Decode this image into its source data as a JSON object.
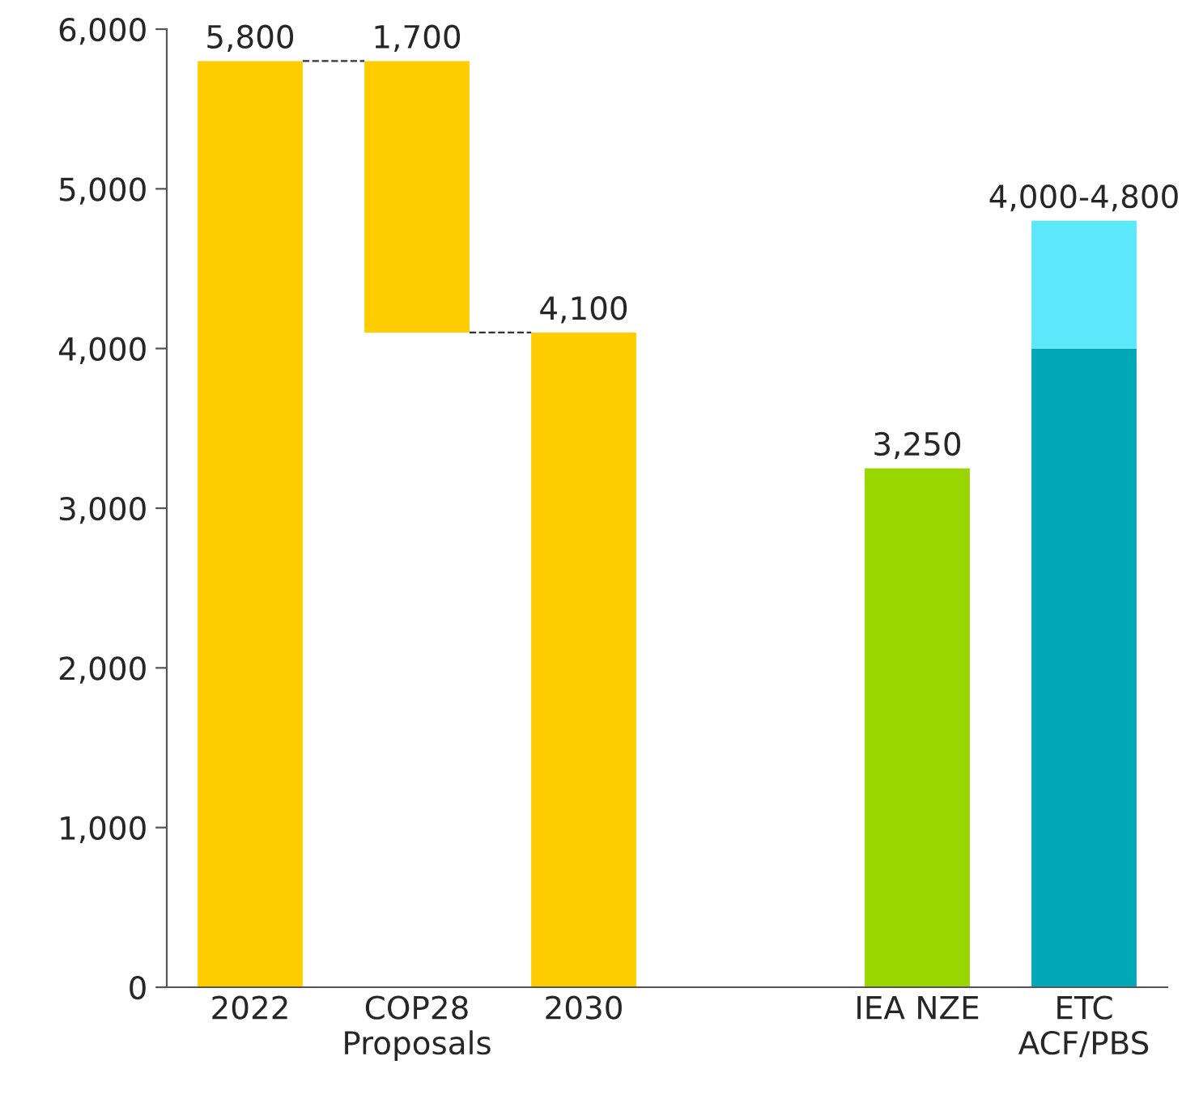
{
  "chart_data": {
    "type": "bar",
    "categories": [
      "2022",
      "COP28\nProposals",
      "2030",
      null,
      "IEA NZE",
      "ETC\nACF/PBS"
    ],
    "stacked": true,
    "series": [
      {
        "base": [
          0,
          4100,
          0,
          null,
          0,
          0
        ],
        "colors": [
          "#ffcc00",
          "#ffcc00",
          "#ffcc00",
          null,
          "#99d600",
          "#00a9b5"
        ],
        "values": [
          5800,
          1700,
          4100,
          null,
          3250,
          4000
        ]
      },
      {
        "color": "#5ce8fb",
        "values": [
          null,
          null,
          null,
          null,
          null,
          800
        ]
      }
    ],
    "value_labels": [
      "5,800",
      "1,700",
      "4,100",
      null,
      "3,250",
      "4,000-4,800"
    ],
    "ylim": [
      0,
      6000
    ],
    "yticks": [
      0,
      {
        "value": 1000,
        "label": "1,000"
      },
      {
        "value": 2000,
        "label": "2,000"
      },
      {
        "value": 3000,
        "label": "3,000"
      },
      {
        "value": 4000,
        "label": "4,000"
      },
      {
        "value": 5000,
        "label": "5,000"
      },
      {
        "value": 6000,
        "label": "6,000"
      }
    ],
    "grid": false,
    "legend": false
  }
}
